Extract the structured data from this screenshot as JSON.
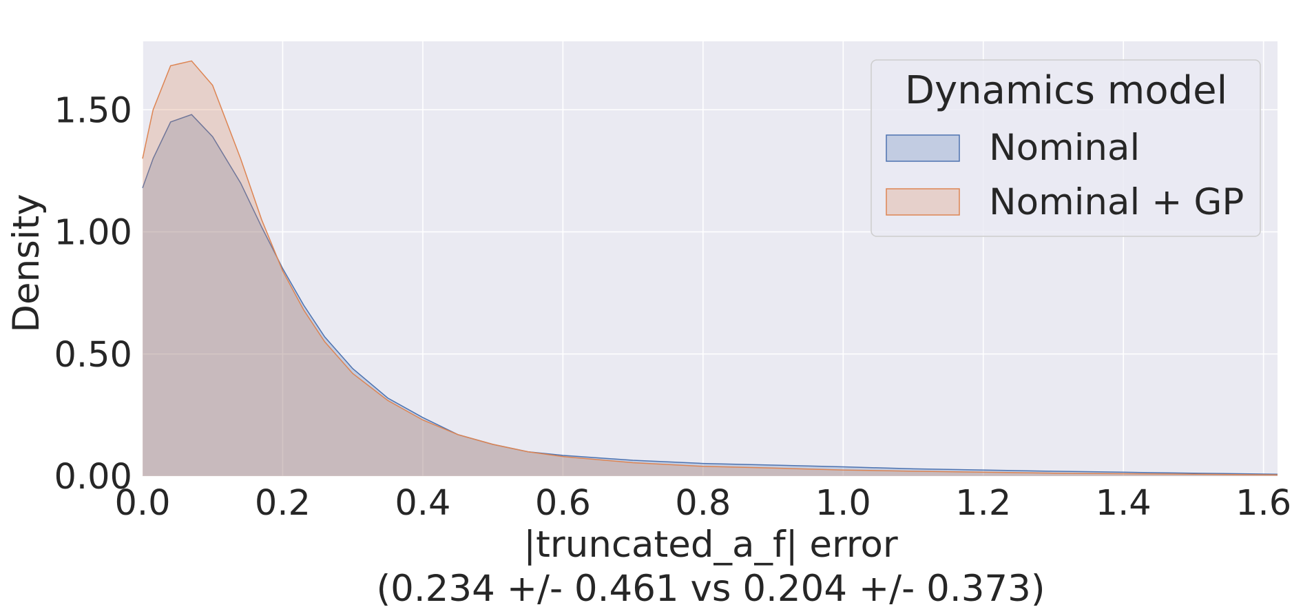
{
  "chart_data": {
    "type": "area",
    "xlabel": "|truncated_a_f| error",
    "xlabel_line2": "(0.234 +/- 0.461 vs 0.204 +/- 0.373)",
    "ylabel": "Density",
    "xlim": [
      0.0,
      1.62
    ],
    "ylim": [
      0.0,
      1.78
    ],
    "x_ticks": [
      0.0,
      0.2,
      0.4,
      0.6,
      0.8,
      1.0,
      1.2,
      1.4,
      1.6
    ],
    "x_tick_labels": [
      "0.0",
      "0.2",
      "0.4",
      "0.6",
      "0.8",
      "1.0",
      "1.2",
      "1.4",
      "1.6"
    ],
    "y_ticks": [
      0.0,
      0.5,
      1.0,
      1.5
    ],
    "y_tick_labels": [
      "0.00",
      "0.50",
      "1.00",
      "1.50"
    ],
    "grid": true,
    "background": "#eaeaf2",
    "legend": {
      "title": "Dynamics model",
      "placement": "top-right",
      "entries": [
        "Nominal",
        "Nominal + GP"
      ]
    },
    "series": [
      {
        "name": "Nominal",
        "color": "#4c72b0",
        "x": [
          0.0,
          0.015,
          0.04,
          0.07,
          0.1,
          0.14,
          0.17,
          0.2,
          0.23,
          0.26,
          0.3,
          0.35,
          0.4,
          0.45,
          0.5,
          0.55,
          0.6,
          0.7,
          0.8,
          0.9,
          1.0,
          1.1,
          1.2,
          1.3,
          1.4,
          1.5,
          1.62
        ],
        "values": [
          1.18,
          1.3,
          1.45,
          1.48,
          1.39,
          1.2,
          1.02,
          0.85,
          0.7,
          0.57,
          0.44,
          0.32,
          0.24,
          0.17,
          0.13,
          0.1,
          0.085,
          0.065,
          0.052,
          0.045,
          0.038,
          0.03,
          0.025,
          0.02,
          0.016,
          0.012,
          0.008
        ]
      },
      {
        "name": "Nominal + GP",
        "color": "#dd8452",
        "x": [
          0.0,
          0.015,
          0.04,
          0.07,
          0.1,
          0.14,
          0.17,
          0.2,
          0.23,
          0.26,
          0.3,
          0.35,
          0.4,
          0.45,
          0.5,
          0.55,
          0.6,
          0.7,
          0.8,
          0.9,
          1.0,
          1.1,
          1.2,
          1.3,
          1.4,
          1.5,
          1.62
        ],
        "values": [
          1.3,
          1.5,
          1.68,
          1.7,
          1.6,
          1.3,
          1.05,
          0.84,
          0.68,
          0.55,
          0.42,
          0.31,
          0.23,
          0.17,
          0.13,
          0.1,
          0.08,
          0.055,
          0.04,
          0.033,
          0.025,
          0.02,
          0.016,
          0.012,
          0.01,
          0.008,
          0.005
        ]
      }
    ]
  }
}
